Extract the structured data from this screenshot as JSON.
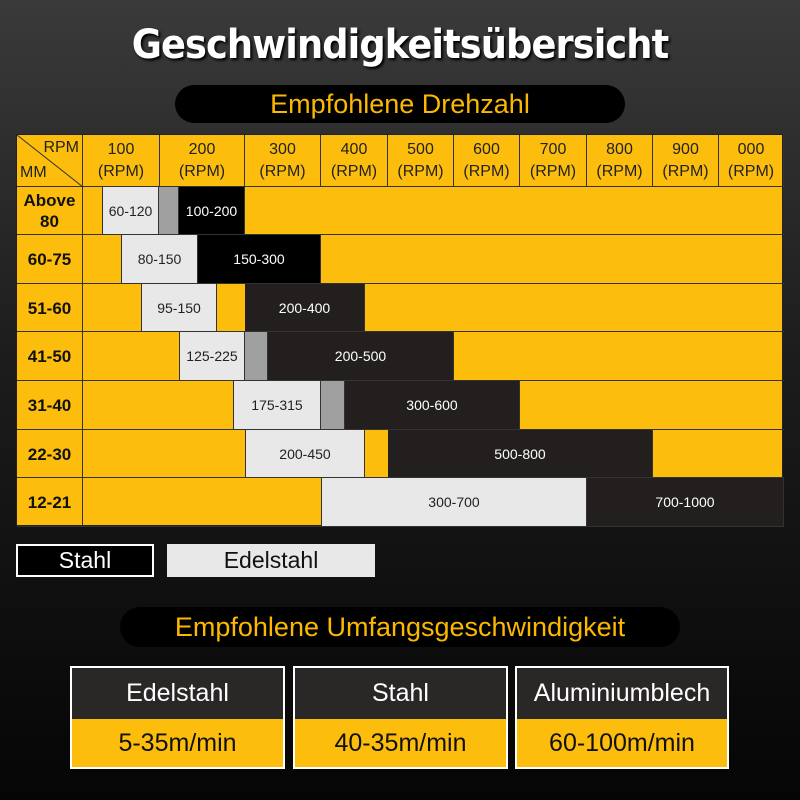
{
  "title": "Geschwindigkeitsübersicht",
  "rpm_section": {
    "heading": "Empfohlene Drehzahl"
  },
  "table": {
    "corner_top": "RPM",
    "corner_bottom": "MM",
    "columns": [
      [
        "100",
        "(RPM)"
      ],
      [
        "200",
        "(RPM)"
      ],
      [
        "300",
        "(RPM)"
      ],
      [
        "400",
        "(RPM)"
      ],
      [
        "500",
        "(RPM)"
      ],
      [
        "600",
        "(RPM)"
      ],
      [
        "700",
        "(RPM)"
      ],
      [
        "800",
        "(RPM)"
      ],
      [
        "900",
        "(RPM)"
      ],
      [
        "000",
        "(RPM)"
      ]
    ],
    "rows": [
      {
        "label": "Above 80",
        "edelstahl": "60-120",
        "stahl": "100-200"
      },
      {
        "label": "60-75",
        "edelstahl": "80-150",
        "stahl": "150-300"
      },
      {
        "label": "51-60",
        "edelstahl": "95-150",
        "stahl": "200-400"
      },
      {
        "label": "41-50",
        "edelstahl": "125-225",
        "stahl": "200-500"
      },
      {
        "label": "31-40",
        "edelstahl": "175-315",
        "stahl": "300-600"
      },
      {
        "label": "22-30",
        "edelstahl": "200-450",
        "stahl": "500-800"
      },
      {
        "label": "12-21",
        "edelstahl": "300-700",
        "stahl": "700-1000"
      }
    ]
  },
  "legend": {
    "stahl": "Stahl",
    "edelstahl": "Edelstahl"
  },
  "speed_section": {
    "heading": "Empfohlene Umfangsgeschwindigkeit",
    "items": [
      {
        "material": "Edelstahl",
        "value": "5-35m/min"
      },
      {
        "material": "Stahl",
        "value": "40-35m/min"
      },
      {
        "material": "Aluminiumblech",
        "value": "60-100m/min"
      }
    ]
  },
  "colors": {
    "accent": "#fcbd0c",
    "stahl": "#231f1f",
    "edelstahl": "#e8e8e8"
  }
}
